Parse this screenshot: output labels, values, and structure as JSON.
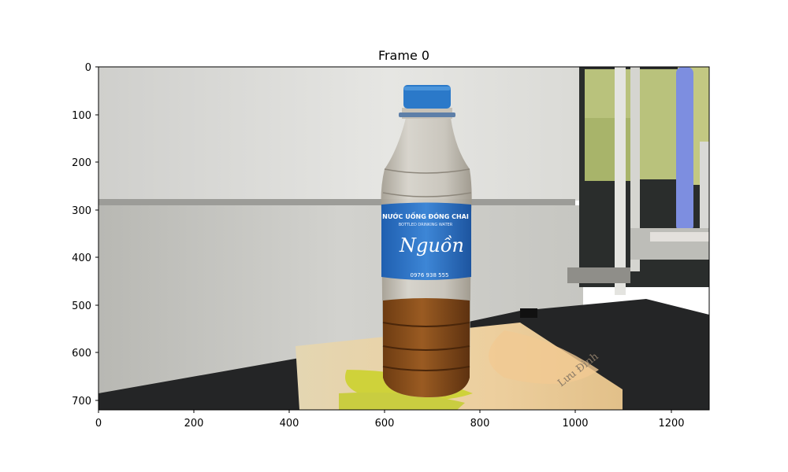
{
  "title": "Frame 0",
  "axes": {
    "x_ticks": [
      "0",
      "200",
      "400",
      "600",
      "800",
      "1000",
      "1200"
    ],
    "y_ticks": [
      "0",
      "100",
      "200",
      "300",
      "400",
      "500",
      "600",
      "700"
    ],
    "x_range": [
      0,
      1280
    ],
    "y_range": [
      0,
      720
    ]
  },
  "photo": {
    "label_line1": "NƯỚC UỐNG ĐÓNG CHAI",
    "label_line2": "BOTTLED DRINKING WATER",
    "label_brand": "Nguồn",
    "label_phone": "0976 938 555",
    "book_author": "Lưu Đình"
  }
}
